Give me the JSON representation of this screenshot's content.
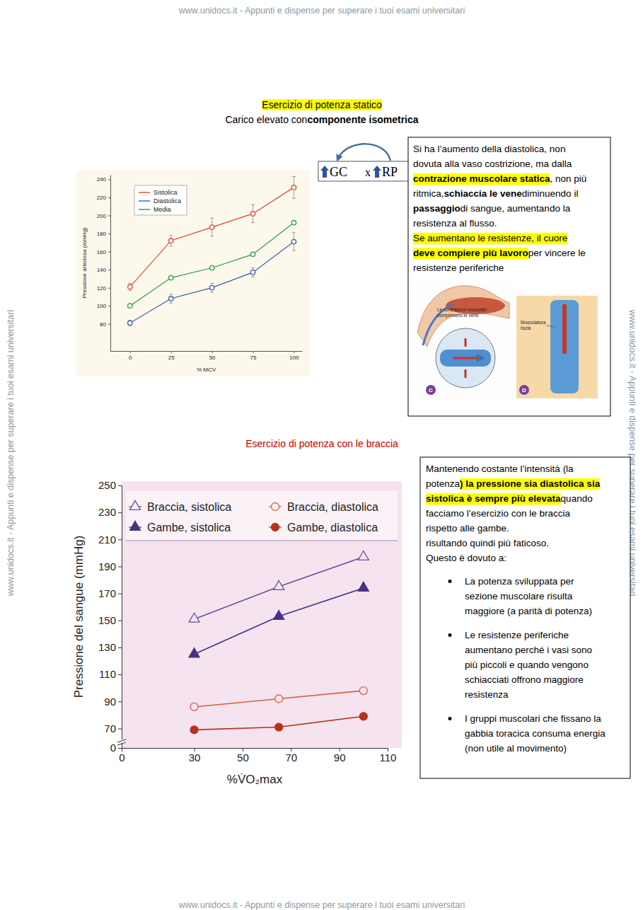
{
  "watermark": "www.unidocs.it - Appunti e dispense per superare i tuoi esami universitari",
  "section1": {
    "title": "Esercizio di potenza statico",
    "subtitle": [
      {
        "text": "Carico elevato con "
      },
      {
        "text": "componente isometrica",
        "bold": true
      }
    ],
    "formula": [
      "GC",
      "x",
      "RP"
    ],
    "note": [
      [
        {
          "text": "Si ha l’aumento della diastolica, non"
        }
      ],
      [
        {
          "text": "dovuta alla vaso costrizione, ma dalla"
        }
      ],
      [
        {
          "text": "contrazione muscolare statica",
          "bold": true,
          "highlight": true
        },
        {
          "text": ", non più"
        }
      ],
      [
        {
          "text": "ritmica, "
        },
        {
          "text": "schiaccia le vene",
          "bold": true
        },
        {
          "text": " diminuendo il"
        }
      ],
      [
        {
          "text": "passaggio",
          "bold": true
        },
        {
          "text": " di sangue, aumentando la"
        }
      ],
      [
        {
          "text": "resistenza al flusso."
        }
      ],
      [
        {
          "text": "Se aumentano le resistenze, il cuore",
          "highlight": true
        }
      ],
      [
        {
          "text": "deve compiere più lavoro",
          "bold": true,
          "highlight": true
        },
        {
          "text": " per vincere le"
        }
      ],
      [
        {
          "text": "resistenze periferiche"
        }
      ]
    ],
    "figure": {
      "c_label": [
        "Le contrazioni muscolari",
        "comprimono le vene"
      ],
      "d_label": [
        "Muscolatura",
        "liscia"
      ],
      "c_letter": "C",
      "d_letter": "D"
    }
  },
  "section2": {
    "title": "Esercizio di potenza con le braccia",
    "note": [
      [
        {
          "text": "Mantenendo costante l’intensità (la"
        }
      ],
      [
        {
          "text": "potenza"
        },
        {
          "text": ") la pressione sia diastolica sia",
          "bold": true,
          "highlight": true
        }
      ],
      [
        {
          "text": "sistolica è sempre più elevata",
          "bold": true,
          "highlight": true
        },
        {
          "text": " quando"
        }
      ],
      [
        {
          "text": "facciamo l’esercizio con le braccia"
        }
      ],
      [
        {
          "text": "rispetto alle gambe."
        }
      ],
      [
        {
          "text": "risultando quindi più faticoso."
        }
      ],
      [
        {
          "text": "Questo è dovuto a:"
        }
      ]
    ],
    "bullets": [
      [
        "La potenza sviluppata per",
        "sezione muscolare risulta",
        "maggiore (a parità di potenza)"
      ],
      [
        "Le resistenze periferiche",
        "aumentano perché i vasi sono",
        "più piccoli e quando vengono",
        "schiacciati offrono maggiore",
        "resistenza"
      ],
      [
        "I gruppi muscolari che fissano la",
        "gabbia toracica consuma energia",
        "(non utile al movimento)"
      ]
    ]
  },
  "chart_data": [
    {
      "type": "line",
      "xlabel": "% MCV",
      "ylabel": "Pressione arteriosa (mmHg)",
      "x": [
        0,
        25,
        50,
        75,
        100
      ],
      "series": [
        {
          "name": "Sistolica",
          "color": "#e0463c",
          "marker": "circle-open",
          "values": [
            121,
            172,
            187,
            202,
            231
          ],
          "errors": [
            4,
            6,
            10,
            10,
            12
          ]
        },
        {
          "name": "Diastolica",
          "color": "#3a5fb0",
          "marker": "circle-open",
          "values": [
            81,
            108,
            120,
            137,
            171
          ],
          "errors": [
            3,
            5,
            5,
            5,
            10
          ]
        },
        {
          "name": "Media",
          "color": "#2e9a4a",
          "marker": "circle-open",
          "values": [
            100,
            131,
            142,
            157,
            192
          ]
        }
      ],
      "xlim": [
        -12,
        105
      ],
      "ylim": [
        50,
        245
      ],
      "xticks": [
        0,
        25,
        50,
        75,
        100
      ],
      "yticks": [
        80,
        100,
        120,
        140,
        160,
        180,
        200,
        220,
        240
      ],
      "legend": "upper left"
    },
    {
      "type": "line",
      "xlabel": "%V̇O₂max",
      "ylabel": "Pressione del sangue (mmHg)",
      "x": [
        30,
        65,
        100
      ],
      "series": [
        {
          "name": "Braccia, sistolica",
          "color": "#6a51a3",
          "marker": "triangle-open",
          "values": [
            151,
            175,
            197
          ]
        },
        {
          "name": "Braccia, diastolica",
          "color": "#d4603a",
          "marker": "circle-open",
          "values": [
            86,
            92,
            98
          ]
        },
        {
          "name": "Gambe, sistolica",
          "color": "#473184",
          "marker": "triangle",
          "values": [
            125,
            153,
            174
          ]
        },
        {
          "name": "Gambe, diastolica",
          "color": "#b8321a",
          "marker": "circle",
          "values": [
            69,
            71,
            79
          ]
        }
      ],
      "xlim": [
        0,
        110
      ],
      "ylim": [
        0,
        250
      ],
      "xticks": [
        0,
        30,
        50,
        70,
        90,
        110
      ],
      "yticks": [
        0,
        70,
        90,
        110,
        130,
        150,
        170,
        190,
        210,
        230,
        250
      ],
      "legend": "top"
    }
  ]
}
